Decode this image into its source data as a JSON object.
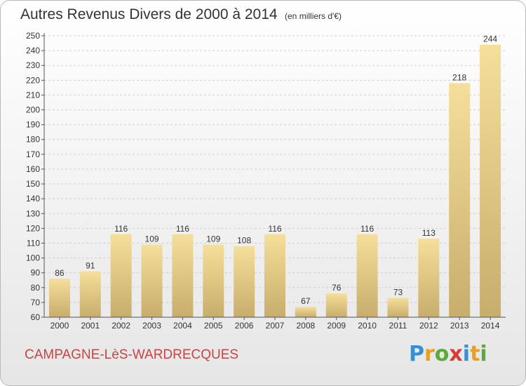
{
  "title": "Autres Revenus Divers de 2000 à 2014",
  "subtitle": "(en milliers d'€)",
  "commune": "CAMPAGNE-LèS-WARDRECQUES",
  "logo": {
    "text": "Proxiti",
    "letters": [
      {
        "ch": "P",
        "color": "#3a8fd0"
      },
      {
        "ch": "r",
        "color": "#e8a020"
      },
      {
        "ch": "o",
        "color": "#5aab3a"
      },
      {
        "ch": "x",
        "color": "#d83a3a"
      },
      {
        "ch": "i",
        "color": "#3a8fd0"
      },
      {
        "ch": "t",
        "color": "#e8a020"
      },
      {
        "ch": "i",
        "color": "#5aab3a"
      }
    ]
  },
  "colors": {
    "bar_light": "#f5df9a",
    "bar_dark": "#c8ad6c",
    "commune_text": "#c94545",
    "grid": "#cfcfcf"
  },
  "chart_data": {
    "type": "bar",
    "title": "Autres Revenus Divers de 2000 à 2014",
    "subtitle": "(en milliers d'€)",
    "categories": [
      "2000",
      "2001",
      "2002",
      "2003",
      "2004",
      "2005",
      "2006",
      "2007",
      "2008",
      "2009",
      "2010",
      "2011",
      "2012",
      "2013",
      "2014"
    ],
    "values": [
      86,
      91,
      116,
      109,
      116,
      109,
      108,
      116,
      67,
      76,
      116,
      73,
      113,
      218,
      244
    ],
    "ylim": [
      60,
      250
    ],
    "ytick_step": 10,
    "grid": true,
    "xlabel": "",
    "ylabel": ""
  }
}
